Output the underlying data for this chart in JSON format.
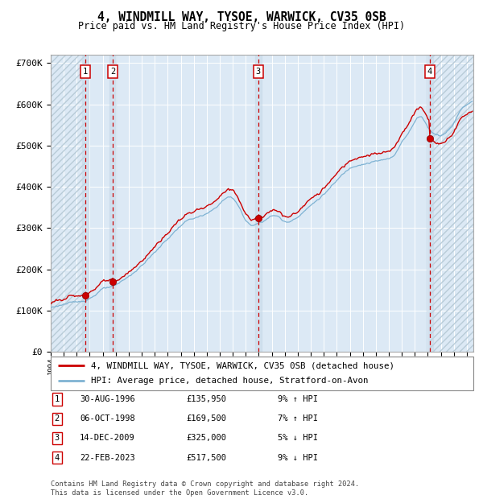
{
  "title": "4, WINDMILL WAY, TYSOE, WARWICK, CV35 0SB",
  "subtitle": "Price paid vs. HM Land Registry's House Price Index (HPI)",
  "xlim": [
    1994.0,
    2026.5
  ],
  "ylim": [
    0,
    720000
  ],
  "yticks": [
    0,
    100000,
    200000,
    300000,
    400000,
    500000,
    600000,
    700000
  ],
  "ytick_labels": [
    "£0",
    "£100K",
    "£200K",
    "£300K",
    "£400K",
    "£500K",
    "£600K",
    "£700K"
  ],
  "background_color": "#dce9f5",
  "grid_color": "#ffffff",
  "red_line_color": "#cc0000",
  "blue_line_color": "#7fb3d3",
  "sale_marker_color": "#cc0000",
  "vline_color": "#cc0000",
  "hatch_color": "#b8ccd8",
  "transactions": [
    {
      "num": 1,
      "date_decimal": 1996.66,
      "price": 135950
    },
    {
      "num": 2,
      "date_decimal": 1998.77,
      "price": 169500
    },
    {
      "num": 3,
      "date_decimal": 2009.96,
      "price": 325000
    },
    {
      "num": 4,
      "date_decimal": 2023.14,
      "price": 517500
    }
  ],
  "legend_line1": "4, WINDMILL WAY, TYSOE, WARWICK, CV35 0SB (detached house)",
  "legend_line2": "HPI: Average price, detached house, Stratford-on-Avon",
  "footer": "Contains HM Land Registry data © Crown copyright and database right 2024.\nThis data is licensed under the Open Government Licence v3.0.",
  "table_rows": [
    {
      "num": 1,
      "date": "30-AUG-1996",
      "price": "£135,950",
      "pct": "9% ↑ HPI"
    },
    {
      "num": 2,
      "date": "06-OCT-1998",
      "price": "£169,500",
      "pct": "7% ↑ HPI"
    },
    {
      "num": 3,
      "date": "14-DEC-2009",
      "price": "£325,000",
      "pct": "5% ↓ HPI"
    },
    {
      "num": 4,
      "date": "22-FEB-2023",
      "price": "£517,500",
      "pct": "9% ↓ HPI"
    }
  ]
}
